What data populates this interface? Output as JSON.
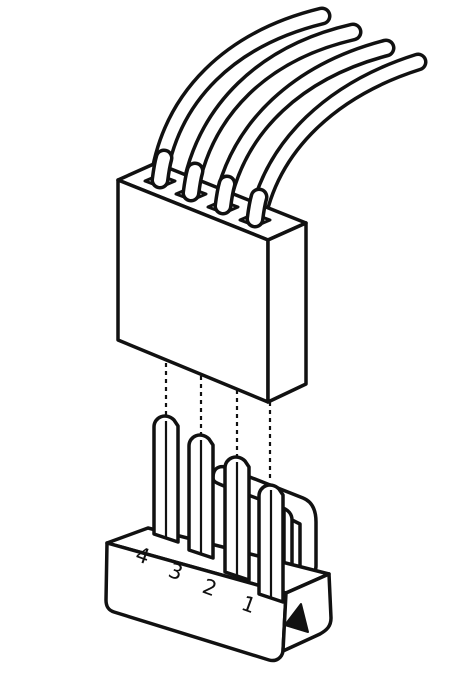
{
  "diagram": {
    "wire_count": 4,
    "pin_labels": [
      "4",
      "3",
      "2",
      "1"
    ],
    "pin1_marker": "triangle-arrow-icon",
    "colors": {
      "stroke": "#111111",
      "fill": "#ffffff",
      "background": "#ffffff"
    }
  }
}
